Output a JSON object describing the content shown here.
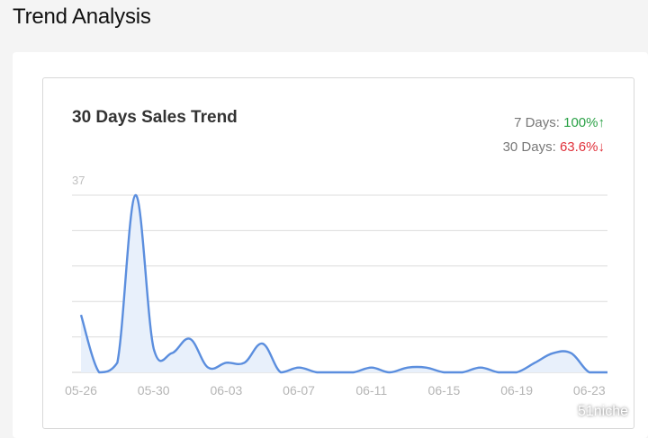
{
  "page": {
    "title": "Trend Analysis"
  },
  "card": {
    "title": "30 Days Sales Trend",
    "stats": [
      {
        "label": "7 Days: ",
        "value": "100%",
        "arrow": "↑",
        "color": "#2aa146"
      },
      {
        "label": "30 Days: ",
        "value": "63.6%",
        "arrow": "↓",
        "color": "#e0303a"
      }
    ]
  },
  "watermark": {
    "text": "51niche"
  },
  "chart_data": {
    "type": "area",
    "title": "30 Days Sales Trend",
    "xlabel": "",
    "ylabel": "",
    "ylim": [
      0,
      37
    ],
    "y_tick_labels": [
      "37"
    ],
    "grid": true,
    "x": [
      "05-26",
      "05-27",
      "05-28",
      "05-29",
      "05-30",
      "05-31",
      "06-01",
      "06-02",
      "06-03",
      "06-04",
      "06-05",
      "06-06",
      "06-07",
      "06-08",
      "06-09",
      "06-10",
      "06-11",
      "06-12",
      "06-13",
      "06-14",
      "06-15",
      "06-16",
      "06-17",
      "06-18",
      "06-19",
      "06-20",
      "06-21",
      "06-22",
      "06-23",
      "06-24"
    ],
    "x_tick_labels": [
      "05-26",
      "05-30",
      "06-03",
      "06-07",
      "06-11",
      "06-15",
      "06-19",
      "06-23"
    ],
    "series": [
      {
        "values": [
          12,
          0,
          2,
          37,
          5,
          4,
          7,
          1,
          2,
          2,
          6,
          0,
          1,
          0,
          0,
          0,
          1,
          0,
          1,
          1,
          0,
          0,
          1,
          0,
          0,
          2,
          4,
          4,
          0,
          0
        ],
        "color": "#5b8ede",
        "fill": "#e8f0fb"
      }
    ]
  }
}
